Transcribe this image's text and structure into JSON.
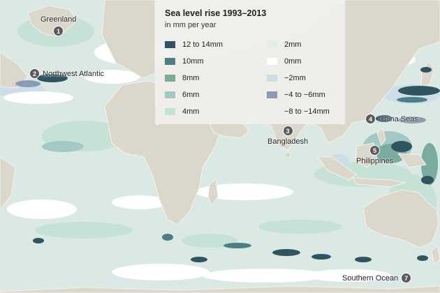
{
  "legend": {
    "title": "Sea level rise 1993–2013",
    "subtitle": "in mm per year",
    "left_items": [
      {
        "label": "12 to 14mm",
        "color": "#2f5560"
      },
      {
        "label": "10mm",
        "color": "#4b7f86"
      },
      {
        "label": "8mm",
        "color": "#79ab9f"
      },
      {
        "label": "6mm",
        "color": "#a3c9c3"
      },
      {
        "label": "4mm",
        "color": "#c6e1d5"
      }
    ],
    "right_items": [
      {
        "label": "2mm",
        "color": "#e0efe8"
      },
      {
        "label": "0mm",
        "color": "#ffffff"
      },
      {
        "label": "−2mm",
        "color": "#cdddea"
      },
      {
        "label": "−4 to −6mm",
        "color": "#8b9cb2"
      },
      {
        "label": "−8 to −14mm",
        "color": ""
      }
    ]
  },
  "callouts": [
    {
      "number": "1",
      "label": "Greenland"
    },
    {
      "number": "2",
      "label": "Northwest Atlantic"
    },
    {
      "number": "3",
      "label": "Bangladesh"
    },
    {
      "number": "4",
      "label": "China Seas"
    },
    {
      "number": "5",
      "label": "Philippines"
    },
    {
      "number": "7",
      "label": "Southern Ocean"
    }
  ],
  "colors": {
    "ocean": "#dbe9e4",
    "land": "#dcd7cb",
    "land_border": "#f5f2ec"
  }
}
